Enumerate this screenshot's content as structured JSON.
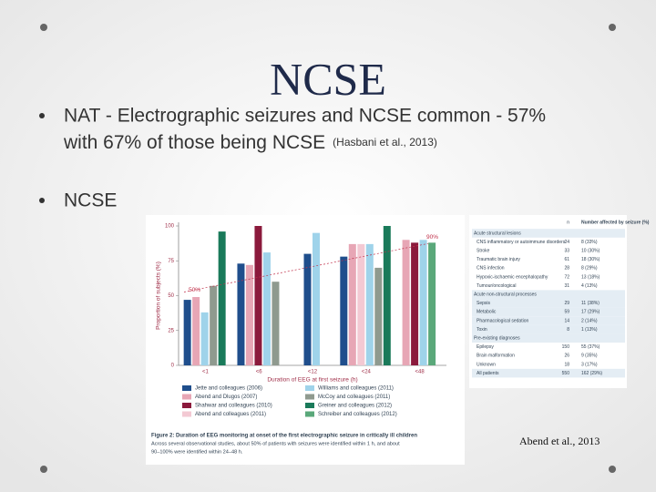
{
  "title": "NCSE",
  "bullets": [
    {
      "lines": [
        "NAT - Electrographic seizures and NCSE common - 57%",
        "with  67% of those being NCSE"
      ],
      "citation": "(Hasbani et al., 2013)"
    },
    {
      "lines": [
        "NCSE"
      ]
    }
  ],
  "chart_data": {
    "type": "bar",
    "x_label": "Duration of EEG at first seizure (h)",
    "y_label": "Proportion of subjects (%)",
    "categories": [
      "<1",
      "<6",
      "<12",
      "<24",
      "<48"
    ],
    "ylim": [
      0,
      100
    ],
    "yticks": [
      0,
      25,
      50,
      75,
      100
    ],
    "annotations": [
      "90%",
      "50%"
    ],
    "series": [
      {
        "name": "Jette and colleagues (2006)",
        "color": "#1f4e8c",
        "values": [
          47,
          73,
          80,
          78,
          null
        ]
      },
      {
        "name": "Abend and Dlugos (2007)",
        "color": "#e7a6b5",
        "values": [
          49,
          72,
          null,
          87,
          90
        ]
      },
      {
        "name": "Shahwar and colleagues (2010)",
        "color": "#8b1a3c",
        "values": [
          null,
          100,
          null,
          null,
          88
        ]
      },
      {
        "name": "Abend and colleagues (2011)",
        "color": "#f3c9d3",
        "values": [
          null,
          null,
          null,
          87,
          null
        ]
      },
      {
        "name": "Williams and colleagues (2011)",
        "color": "#9fd3ea",
        "values": [
          38,
          81,
          95,
          87,
          90
        ]
      },
      {
        "name": "McCoy and colleagues (2011)",
        "color": "#8f9a8f",
        "values": [
          57,
          60,
          null,
          70,
          null
        ]
      },
      {
        "name": "Greiner and colleagues (2012)",
        "color": "#1a7a5a",
        "values": [
          96,
          null,
          null,
          100,
          null
        ]
      },
      {
        "name": "Schreiber and colleagues (2012)",
        "color": "#5aa87a",
        "values": [
          null,
          null,
          null,
          null,
          88
        ]
      }
    ],
    "caption": [
      "Figure 2: Duration of EEG monitoring at onset of the first electrographic seizure in critically ill children",
      "Across several observational studies, about 50% of patients with seizures were identified within 1 h, and about",
      "90–100% were identified within 24–48 h."
    ]
  },
  "table": {
    "header": [
      "n",
      "Number affected by seizure (%)"
    ],
    "rows": [
      [
        "Acute structural lesions"
      ],
      [
        "CNS inflammatory or autoimmune disorders",
        "24",
        "8 (33%)"
      ],
      [
        "Stroke",
        "33",
        "10 (30%)"
      ],
      [
        "Traumatic brain injury",
        "61",
        "18 (30%)"
      ],
      [
        "CNS infection",
        "28",
        "8 (29%)"
      ],
      [
        "Hypoxic-ischaemic encephalopathy",
        "72",
        "13 (18%)"
      ],
      [
        "Tumour/oncological",
        "31",
        "4 (13%)"
      ],
      [
        "Acute non-structural processes"
      ],
      [
        "Sepsis",
        "29",
        "11 (38%)"
      ],
      [
        "Metabolic",
        "59",
        "17 (29%)"
      ],
      [
        "Pharmacological sedation",
        "14",
        "2 (14%)"
      ],
      [
        "Toxin",
        "8",
        "1 (13%)"
      ],
      [
        "Pre-existing diagnoses"
      ],
      [
        "Epilepsy",
        "150",
        "55 (37%)"
      ],
      [
        "Brain malformation",
        "26",
        "9 (35%)"
      ],
      [
        "Unknown",
        "18",
        "3 (17%)"
      ],
      [
        "All patients",
        "550",
        "162 (29%)"
      ]
    ]
  },
  "citation": "Abend et al., 2013"
}
